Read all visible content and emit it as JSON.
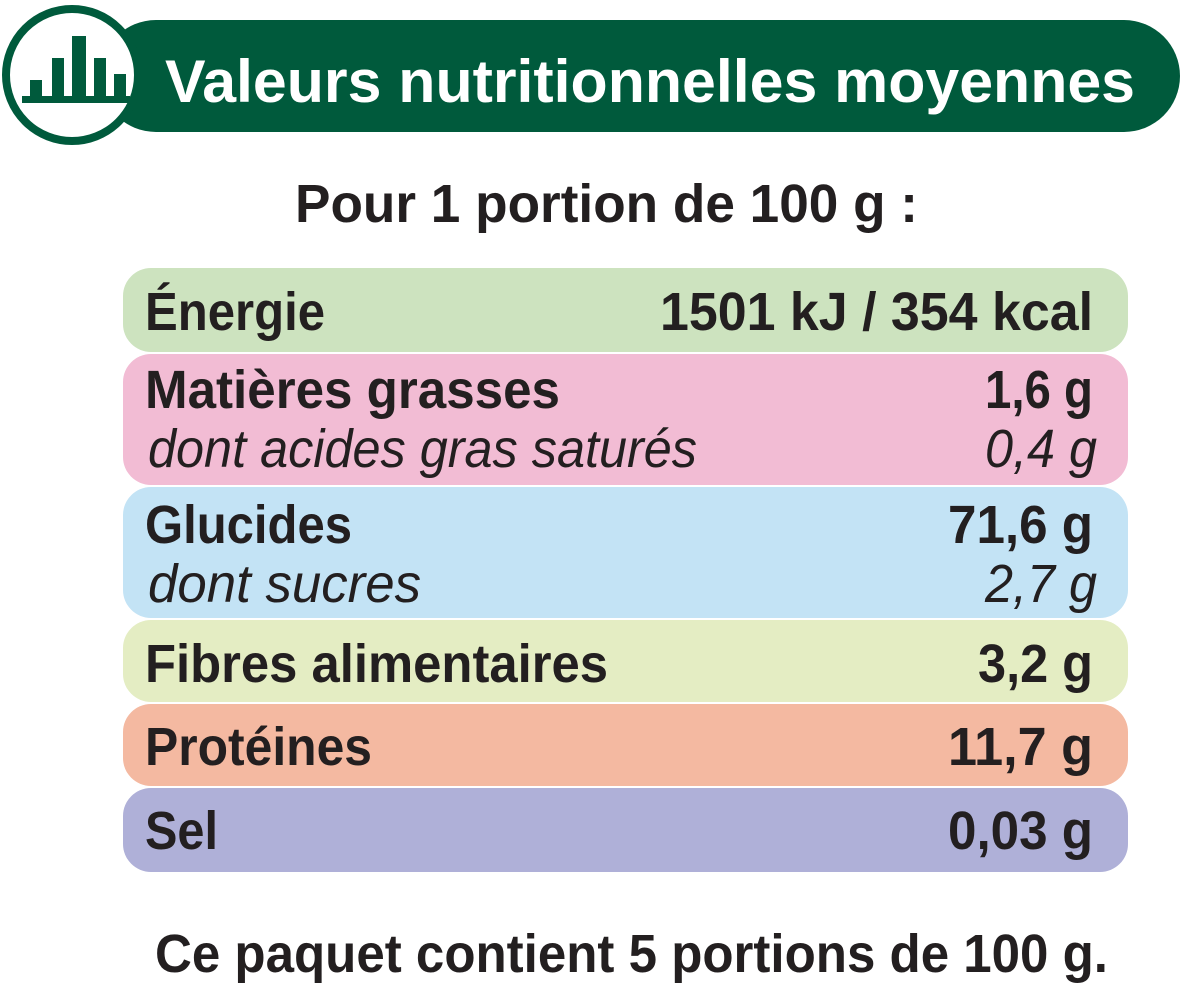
{
  "header": {
    "title": "Valeurs nutritionnelles moyennes"
  },
  "subtitle": "Pour 1 portion de 100 g :",
  "rows": [
    {
      "label": "Énergie",
      "value": "1501 kJ / 354 kcal"
    },
    {
      "label": "Matières grasses",
      "value": "1,6 g",
      "sub": {
        "label": "dont acides gras saturés",
        "value": "0,4 g"
      }
    },
    {
      "label": "Glucides",
      "value": "71,6 g",
      "sub": {
        "label": "dont sucres",
        "value": "2,7 g"
      }
    },
    {
      "label": "Fibres alimentaires",
      "value": "3,2 g"
    },
    {
      "label": "Protéines",
      "value": "11,7 g"
    },
    {
      "label": "Sel",
      "value": "0,03 g"
    }
  ],
  "footer": "Ce paquet contient 5 portions de 100 g."
}
